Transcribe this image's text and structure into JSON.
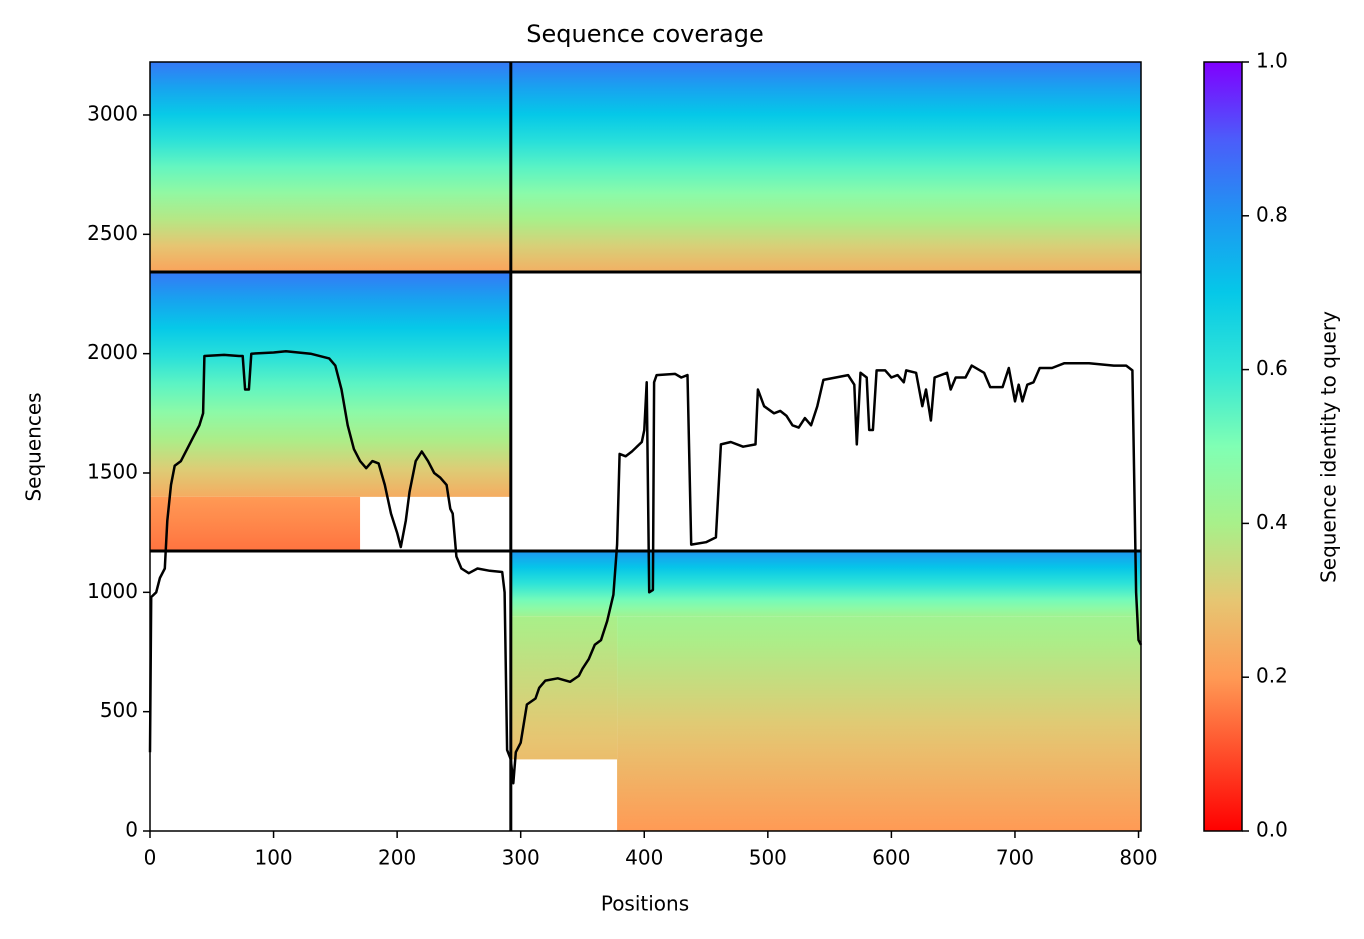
{
  "chart_data": {
    "type": "heatmap",
    "title": "Sequence coverage",
    "xlabel": "Positions",
    "ylabel": "Sequences",
    "xlim": [
      0,
      802
    ],
    "ylim": [
      0,
      3222
    ],
    "xticks": [
      0,
      100,
      200,
      300,
      400,
      500,
      600,
      700,
      800
    ],
    "yticks": [
      0,
      500,
      1000,
      1500,
      2000,
      2500,
      3000
    ],
    "colorbar": {
      "label": "Sequence identity to query",
      "lim": [
        0,
        1
      ],
      "ticks": [
        {
          "value": 0,
          "label": "0.0"
        },
        0.2,
        0.4,
        0.6,
        0.8,
        {
          "value": 1,
          "label": "1.0"
        }
      ],
      "colormap": [
        {
          "value": 0,
          "color": "#ff0000"
        },
        {
          "value": 0.2,
          "color": "#ff9a55"
        },
        {
          "value": 0.3,
          "color": "#e6c672"
        },
        {
          "value": 0.4,
          "color": "#a8f08a"
        },
        {
          "value": 0.5,
          "color": "#80ffb4"
        },
        {
          "value": 0.6,
          "color": "#33e6d6"
        },
        {
          "value": 0.7,
          "color": "#05c8e8"
        },
        {
          "value": 0.8,
          "color": "#1e96f2"
        },
        {
          "value": 0.9,
          "color": "#4c5cfa"
        },
        {
          "value": 1,
          "color": "#8000ff"
        }
      ]
    },
    "blocks": [
      {
        "x": [
          0,
          292
        ],
        "y": [
          2342,
          3222
        ],
        "identity": [
          0.85,
          0.22
        ]
      },
      {
        "x": [
          292,
          802
        ],
        "y": [
          2342,
          3222
        ],
        "identity": [
          0.85,
          0.25
        ]
      },
      {
        "x": [
          0,
          292
        ],
        "y": [
          1400,
          2342
        ],
        "identity": [
          0.85,
          0.24
        ]
      },
      {
        "x": [
          0,
          170
        ],
        "y": [
          1173,
          1400
        ],
        "identity": [
          0.2,
          0.15
        ]
      },
      {
        "x": [
          292,
          802
        ],
        "y": [
          900,
          1173
        ],
        "identity": [
          0.8,
          0.42
        ]
      },
      {
        "x": [
          378,
          802
        ],
        "y": [
          0,
          900
        ],
        "identity": [
          0.42,
          0.2
        ]
      },
      {
        "x": [
          292,
          378
        ],
        "y": [
          300,
          900
        ],
        "identity": [
          0.4,
          0.28
        ]
      }
    ],
    "boundaries_x": [
      292
    ],
    "boundaries_y": [
      1173,
      2342
    ],
    "line_color": "#000000",
    "coverage": {
      "x": [
        0,
        1,
        5,
        8,
        12,
        14,
        17,
        20,
        25,
        30,
        35,
        40,
        43,
        44,
        60,
        72,
        75,
        77,
        80,
        82,
        100,
        110,
        130,
        145,
        150,
        155,
        160,
        165,
        170,
        175,
        180,
        185,
        190,
        195,
        200,
        203,
        207,
        210,
        215,
        220,
        225,
        230,
        235,
        240,
        243,
        245,
        248,
        252,
        258,
        265,
        275,
        285,
        287,
        289,
        292,
        294,
        296,
        300,
        305,
        312,
        315,
        320,
        330,
        340,
        347,
        350,
        355,
        360,
        365,
        370,
        375,
        378,
        380,
        385,
        390,
        398,
        400,
        402,
        404,
        407,
        408,
        410,
        425,
        430,
        435,
        438,
        450,
        458,
        462,
        470,
        480,
        490,
        492,
        497,
        505,
        510,
        515,
        520,
        525,
        530,
        535,
        540,
        545,
        555,
        565,
        570,
        572,
        575,
        580,
        582,
        585,
        588,
        595,
        600,
        605,
        610,
        612,
        620,
        625,
        628,
        632,
        635,
        645,
        648,
        652,
        660,
        665,
        675,
        680,
        690,
        695,
        700,
        703,
        706,
        710,
        715,
        720,
        730,
        740,
        760,
        780,
        790,
        795,
        798,
        800,
        802
      ],
      "values": [
        330,
        980,
        1000,
        1060,
        1100,
        1300,
        1450,
        1530,
        1550,
        1600,
        1650,
        1700,
        1750,
        1990,
        1995,
        1990,
        1990,
        1850,
        1850,
        2000,
        2005,
        2010,
        2000,
        1980,
        1950,
        1850,
        1700,
        1600,
        1550,
        1520,
        1550,
        1540,
        1450,
        1330,
        1250,
        1190,
        1300,
        1420,
        1550,
        1590,
        1550,
        1500,
        1480,
        1450,
        1350,
        1330,
        1150,
        1100,
        1080,
        1100,
        1090,
        1085,
        1000,
        340,
        300,
        200,
        330,
        370,
        530,
        555,
        600,
        630,
        640,
        625,
        650,
        680,
        720,
        780,
        800,
        880,
        990,
        1200,
        1580,
        1570,
        1590,
        1630,
        1680,
        1880,
        1000,
        1010,
        1880,
        1910,
        1915,
        1900,
        1910,
        1200,
        1210,
        1230,
        1620,
        1630,
        1610,
        1620,
        1850,
        1780,
        1750,
        1760,
        1740,
        1700,
        1690,
        1730,
        1700,
        1780,
        1890,
        1900,
        1910,
        1870,
        1620,
        1920,
        1900,
        1680,
        1680,
        1930,
        1930,
        1900,
        1910,
        1880,
        1930,
        1920,
        1780,
        1850,
        1720,
        1900,
        1920,
        1850,
        1900,
        1900,
        1950,
        1920,
        1860,
        1860,
        1940,
        1800,
        1870,
        1800,
        1870,
        1880,
        1940,
        1940,
        1960,
        1960,
        1950,
        1950,
        1930,
        1000,
        800,
        780
      ]
    }
  }
}
